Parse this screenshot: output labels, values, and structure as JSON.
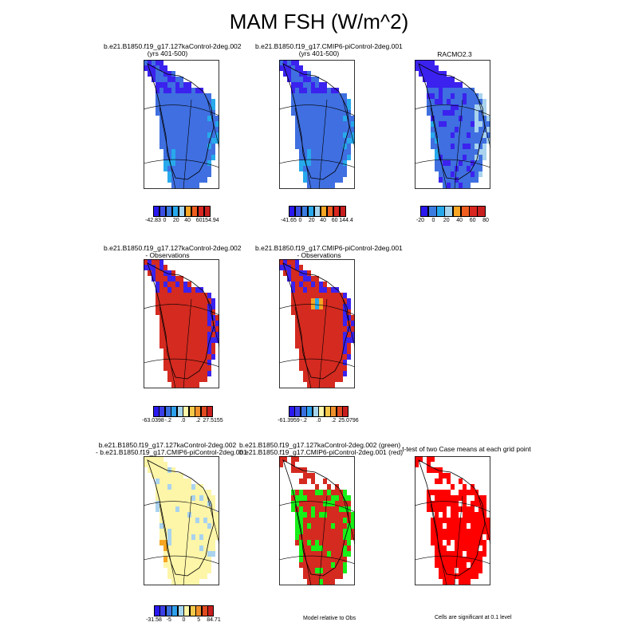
{
  "figure": {
    "title": "MAM FSH (W/m^2)"
  },
  "panels": [
    {
      "id": "p1",
      "title_lines": [
        "b.e21.B1850.f19_g17.127kaControl-2deg.002",
        "(yrs 401-500)"
      ],
      "field": "case1"
    },
    {
      "id": "p2",
      "title_lines": [
        "b.e21.B1850.f19_g17.CMIP6-piControl-2deg.001",
        "(yrs 401-500)"
      ],
      "field": "case2"
    },
    {
      "id": "p3",
      "title_lines": [
        "RACMO2.3"
      ],
      "field": "obs"
    },
    {
      "id": "p4",
      "title_lines": [
        "b.e21.B1850.f19_g17.127kaControl-2deg.002",
        "- Observations"
      ],
      "field": "diff1"
    },
    {
      "id": "p5",
      "title_lines": [
        "b.e21.B1850.f19_g17.CMIP6-piControl-2deg.001",
        "- Observations"
      ],
      "field": "diff2"
    },
    {
      "id": "p6",
      "title_lines": [
        "b.e21.B1850.f19_g17.127kaControl-2deg.002",
        "- b.e21.B1850.f19_g17.CMIP6-piControl-2deg.001"
      ],
      "field": "casediff"
    },
    {
      "id": "p7",
      "title_lines": [
        "b.e21.B1850.f19_g17.127kaControl-2deg.002 (green)",
        "b.e21.B1850.f19_g17.CMIP6-piControl-2deg.001 (red)"
      ],
      "field": "closer"
    },
    {
      "id": "p8",
      "title_lines": [
        "t-test of two Case means at each grid point"
      ],
      "field": "signif"
    }
  ],
  "colorbars": [
    {
      "id": "cb1",
      "colors": [
        "#2a18ef",
        "#3b4fe3",
        "#3a7be0",
        "#27a9ec",
        "#a5d5ee",
        "#f6a623",
        "#ef5d1f",
        "#d9261f",
        "#c81e1e"
      ],
      "labels": [
        "-42.83",
        "0",
        "20",
        "40",
        "60",
        "154.94"
      ]
    },
    {
      "id": "cb2",
      "colors": [
        "#2a18ef",
        "#3b4fe3",
        "#3a7be0",
        "#27a9ec",
        "#a5d5ee",
        "#f6a623",
        "#ef5d1f",
        "#d9261f",
        "#c81e1e"
      ],
      "labels": [
        "-41.65",
        "0",
        "20",
        "40",
        "60",
        "144.4"
      ]
    },
    {
      "id": "cb3",
      "colors": [
        "#2a18ef",
        "#3a7be0",
        "#27a9ec",
        "#a5d5ee",
        "#f6a623",
        "#ef5d1f",
        "#d9261f",
        "#c81e1e"
      ],
      "labels": [
        "-20",
        "0",
        "20",
        "40",
        "60",
        "80"
      ]
    },
    {
      "id": "cb4",
      "colors": [
        "#2a18ef",
        "#3b3fe6",
        "#3a6fe0",
        "#2da0ec",
        "#a5d5ee",
        "#fdf6a8",
        "#f6c84a",
        "#f0902a",
        "#e04a1f",
        "#c81e1e"
      ],
      "labels": [
        "-63.0398",
        "-.2",
        ".0",
        ".2",
        "27.5155"
      ]
    },
    {
      "id": "cb5",
      "colors": [
        "#2a18ef",
        "#3b3fe6",
        "#3a6fe0",
        "#2da0ec",
        "#a5d5ee",
        "#fdf6a8",
        "#f6c84a",
        "#f0902a",
        "#e04a1f",
        "#c81e1e"
      ],
      "labels": [
        "-61.3959",
        "-.2",
        ".0",
        ".2",
        "25.0796"
      ]
    },
    {
      "id": "cb6",
      "colors": [
        "#2a18ef",
        "#3b3fe6",
        "#3a6fe0",
        "#2da0ec",
        "#a5d5ee",
        "#fdf6a8",
        "#f6c84a",
        "#f0902a",
        "#e04a1f",
        "#c81e1e"
      ],
      "labels": [
        "-31.58",
        "-5",
        "0",
        "5",
        "84.71"
      ]
    }
  ],
  "notes": {
    "closer": "Model relative to Obs",
    "signif": "Cells are significant at 0.1 level"
  },
  "colors": {
    "deep_blue": "#3b22ee",
    "mid_blue": "#3f6fe0",
    "light_blue": "#27a9ec",
    "pale_blue": "#a9d3ee",
    "orange": "#f6a623",
    "red": "#d42a20",
    "pale_yellow": "#fdf5a8",
    "green": "#18f018",
    "sig_red": "#ff0000"
  }
}
